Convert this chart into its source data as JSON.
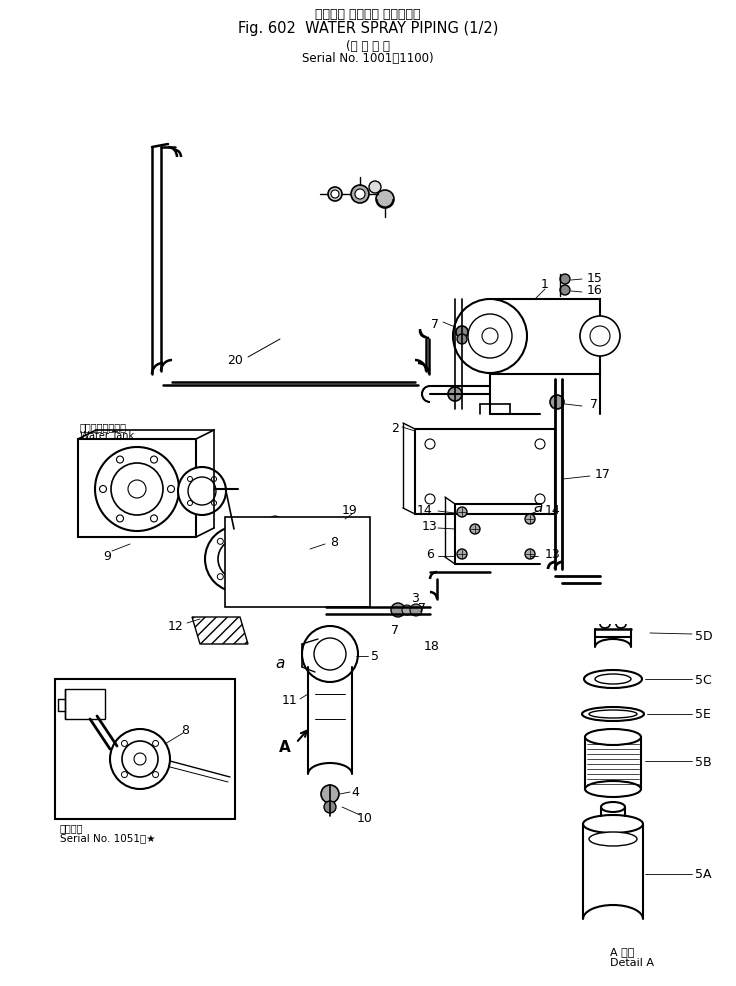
{
  "title_jp": "ウォータ スプレイ パイピング",
  "title_en": "Fig. 602  WATER SPRAY PIPING (1/2)",
  "serial_jp": "適 用 号 機",
  "serial_en": "Serial No. 1001～1100",
  "serial2_jp": "適用号機",
  "serial2_en": "Serial No. 1051～★",
  "detail_jp": "A 詳細",
  "detail_en": "Detail A",
  "water_tank_jp": "ウォータータンク",
  "water_tank_en": "Water Tank",
  "bg_color": "#ffffff",
  "lc": "#000000",
  "figsize": [
    7.36,
    9.87
  ],
  "dpi": 100
}
